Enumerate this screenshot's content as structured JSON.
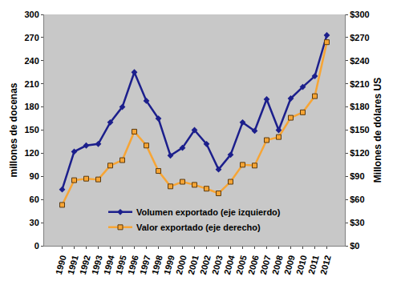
{
  "chart_data": {
    "type": "line",
    "categories": [
      "1990",
      "1991",
      "1992",
      "1993",
      "1994",
      "1995",
      "1996",
      "1997",
      "1998",
      "1999",
      "2000",
      "2001",
      "2002",
      "2003",
      "2004",
      "2005",
      "2006",
      "2007",
      "2008",
      "2009",
      "2010",
      "2011",
      "2012"
    ],
    "series": [
      {
        "name": "Volumen exportado (eje izquierdo)",
        "color": "#1c1f8c",
        "marker": "diamond",
        "values": [
          73,
          122,
          130,
          132,
          160,
          180,
          225,
          188,
          165,
          117,
          127,
          150,
          132,
          99,
          118,
          160,
          149,
          190,
          150,
          191,
          206,
          220,
          273
        ]
      },
      {
        "name": "Valor exportado (eje derecho)",
        "color": "#f7a535",
        "marker": "square",
        "axis": "y2",
        "values": [
          53,
          85,
          87,
          86,
          104,
          111,
          148,
          130,
          97,
          77,
          83,
          79,
          74,
          68,
          83,
          105,
          104,
          137,
          141,
          166,
          173,
          194,
          264
        ]
      }
    ],
    "ylabel": "millones de docenas",
    "y2label": "Millones de dólares US",
    "ylim": [
      0,
      300
    ],
    "yticks": [
      0,
      30,
      60,
      90,
      120,
      150,
      180,
      210,
      240,
      270,
      300
    ],
    "y2lim": [
      0,
      300
    ],
    "y2ticks": [
      {
        "value": 0,
        "label": "$0"
      },
      {
        "value": 30,
        "label": "$30"
      },
      {
        "value": 60,
        "label": "$60"
      },
      {
        "value": 90,
        "label": "$90"
      },
      {
        "value": 120,
        "label": "$120"
      },
      {
        "value": 150,
        "label": "$150"
      },
      {
        "value": 180,
        "label": "$180"
      },
      {
        "value": 210,
        "label": "$210"
      },
      {
        "value": 240,
        "label": "$240"
      },
      {
        "value": 270,
        "label": "$270"
      },
      {
        "value": 300,
        "label": "$300"
      }
    ],
    "grid": false,
    "legend": "lower center"
  }
}
